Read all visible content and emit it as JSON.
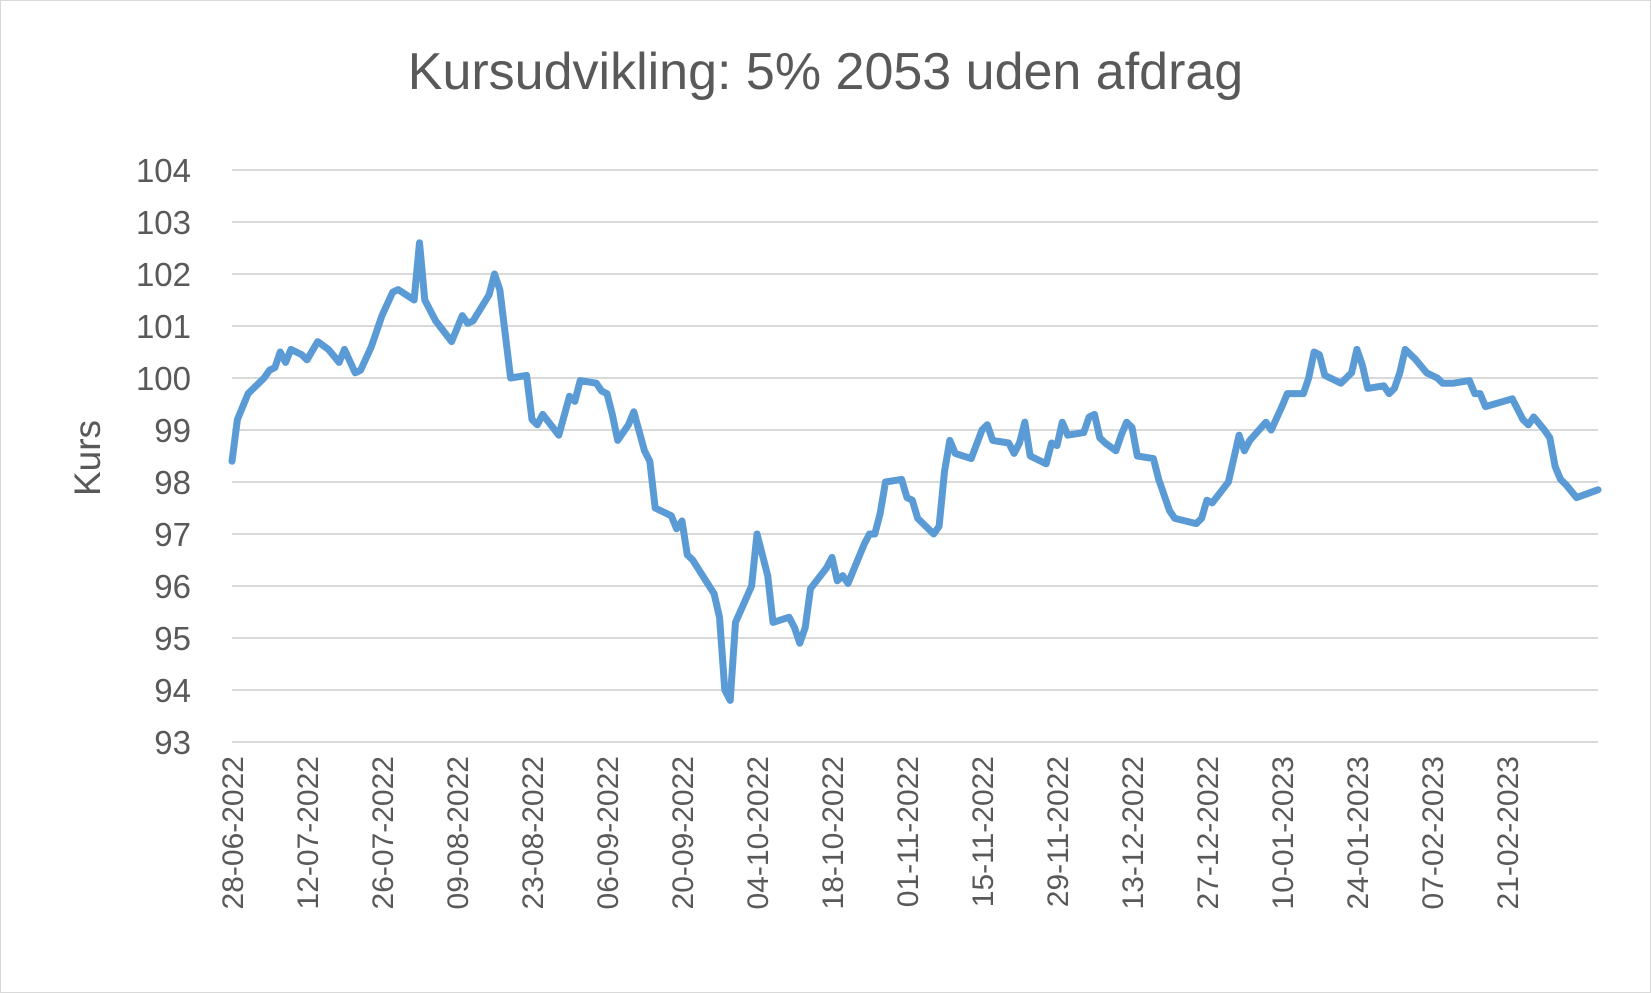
{
  "chart_data": {
    "type": "line",
    "title": "Kursudvikling: 5% 2053 uden afdrag",
    "xlabel": "",
    "ylabel": "Kurs",
    "ylim": [
      93,
      104
    ],
    "yticks": [
      "93",
      "94",
      "95",
      "96",
      "97",
      "98",
      "99",
      "100",
      "101",
      "102",
      "103",
      "104"
    ],
    "xlim": [
      "2022-06-28",
      "2023-03-10"
    ],
    "xtick_dates": [
      "2022-06-28",
      "2022-07-12",
      "2022-07-26",
      "2022-08-09",
      "2022-08-23",
      "2022-09-06",
      "2022-09-20",
      "2022-10-04",
      "2022-10-18",
      "2022-11-01",
      "2022-11-15",
      "2022-11-29",
      "2022-12-13",
      "2022-12-27",
      "2023-01-10",
      "2023-01-24",
      "2023-02-07",
      "2023-02-21"
    ],
    "xtick_labels": [
      "28-06-2022",
      "12-07-2022",
      "26-07-2022",
      "09-08-2022",
      "23-08-2022",
      "06-09-2022",
      "20-09-2022",
      "04-10-2022",
      "18-10-2022",
      "01-11-2022",
      "15-11-2022",
      "29-11-2022",
      "13-12-2022",
      "27-12-2022",
      "10-01-2023",
      "24-01-2023",
      "07-02-2023",
      "21-02-2023"
    ],
    "grid": true,
    "legend": "none",
    "series": [
      {
        "color": "#5b9bd5",
        "points": [
          [
            "2022-06-28",
            98.4
          ],
          [
            "2022-06-29",
            99.2
          ],
          [
            "2022-07-01",
            99.7
          ],
          [
            "2022-07-04",
            100.0
          ],
          [
            "2022-07-05",
            100.15
          ],
          [
            "2022-07-06",
            100.2
          ],
          [
            "2022-07-07",
            100.5
          ],
          [
            "2022-07-08",
            100.3
          ],
          [
            "2022-07-09",
            100.55
          ],
          [
            "2022-07-11",
            100.45
          ],
          [
            "2022-07-12",
            100.35
          ],
          [
            "2022-07-14",
            100.7
          ],
          [
            "2022-07-16",
            100.55
          ],
          [
            "2022-07-18",
            100.3
          ],
          [
            "2022-07-19",
            100.55
          ],
          [
            "2022-07-21",
            100.1
          ],
          [
            "2022-07-22",
            100.15
          ],
          [
            "2022-07-24",
            100.6
          ],
          [
            "2022-07-26",
            101.2
          ],
          [
            "2022-07-28",
            101.65
          ],
          [
            "2022-07-29",
            101.7
          ],
          [
            "2022-08-01",
            101.5
          ],
          [
            "2022-08-02",
            102.6
          ],
          [
            "2022-08-03",
            101.5
          ],
          [
            "2022-08-05",
            101.1
          ],
          [
            "2022-08-08",
            100.7
          ],
          [
            "2022-08-10",
            101.2
          ],
          [
            "2022-08-11",
            101.05
          ],
          [
            "2022-08-12",
            101.1
          ],
          [
            "2022-08-15",
            101.6
          ],
          [
            "2022-08-16",
            102.0
          ],
          [
            "2022-08-17",
            101.7
          ],
          [
            "2022-08-19",
            100.0
          ],
          [
            "2022-08-22",
            100.05
          ],
          [
            "2022-08-23",
            99.2
          ],
          [
            "2022-08-24",
            99.1
          ],
          [
            "2022-08-25",
            99.3
          ],
          [
            "2022-08-28",
            98.9
          ],
          [
            "2022-08-30",
            99.65
          ],
          [
            "2022-08-31",
            99.55
          ],
          [
            "2022-09-01",
            99.95
          ],
          [
            "2022-09-04",
            99.9
          ],
          [
            "2022-09-05",
            99.75
          ],
          [
            "2022-09-06",
            99.7
          ],
          [
            "2022-09-07",
            99.3
          ],
          [
            "2022-09-08",
            98.8
          ],
          [
            "2022-09-10",
            99.1
          ],
          [
            "2022-09-11",
            99.35
          ],
          [
            "2022-09-13",
            98.6
          ],
          [
            "2022-09-14",
            98.4
          ],
          [
            "2022-09-15",
            97.5
          ],
          [
            "2022-09-18",
            97.35
          ],
          [
            "2022-09-19",
            97.1
          ],
          [
            "2022-09-20",
            97.25
          ],
          [
            "2022-09-21",
            96.6
          ],
          [
            "2022-09-22",
            96.5
          ],
          [
            "2022-09-26",
            95.85
          ],
          [
            "2022-09-27",
            95.4
          ],
          [
            "2022-09-28",
            94.0
          ],
          [
            "2022-09-29",
            93.8
          ],
          [
            "2022-09-30",
            95.3
          ],
          [
            "2022-10-03",
            96.0
          ],
          [
            "2022-10-04",
            97.0
          ],
          [
            "2022-10-06",
            96.2
          ],
          [
            "2022-10-07",
            95.3
          ],
          [
            "2022-10-10",
            95.4
          ],
          [
            "2022-10-11",
            95.2
          ],
          [
            "2022-10-12",
            94.9
          ],
          [
            "2022-10-13",
            95.2
          ],
          [
            "2022-10-14",
            95.95
          ],
          [
            "2022-10-17",
            96.35
          ],
          [
            "2022-10-18",
            96.55
          ],
          [
            "2022-10-19",
            96.1
          ],
          [
            "2022-10-20",
            96.2
          ],
          [
            "2022-10-21",
            96.05
          ],
          [
            "2022-10-24",
            96.8
          ],
          [
            "2022-10-25",
            97.0
          ],
          [
            "2022-10-26",
            97.0
          ],
          [
            "2022-10-27",
            97.4
          ],
          [
            "2022-10-28",
            98.0
          ],
          [
            "2022-10-31",
            98.05
          ],
          [
            "2022-11-01",
            97.7
          ],
          [
            "2022-11-02",
            97.65
          ],
          [
            "2022-11-03",
            97.3
          ],
          [
            "2022-11-06",
            97.0
          ],
          [
            "2022-11-07",
            97.15
          ],
          [
            "2022-11-08",
            98.2
          ],
          [
            "2022-11-09",
            98.8
          ],
          [
            "2022-11-10",
            98.55
          ],
          [
            "2022-11-13",
            98.45
          ],
          [
            "2022-11-15",
            99.0
          ],
          [
            "2022-11-16",
            99.1
          ],
          [
            "2022-11-17",
            98.8
          ],
          [
            "2022-11-20",
            98.75
          ],
          [
            "2022-11-21",
            98.55
          ],
          [
            "2022-11-22",
            98.75
          ],
          [
            "2022-11-23",
            99.15
          ],
          [
            "2022-11-24",
            98.5
          ],
          [
            "2022-11-27",
            98.35
          ],
          [
            "2022-11-28",
            98.75
          ],
          [
            "2022-11-29",
            98.7
          ],
          [
            "2022-11-30",
            99.15
          ],
          [
            "2022-12-01",
            98.9
          ],
          [
            "2022-12-04",
            98.95
          ],
          [
            "2022-12-05",
            99.25
          ],
          [
            "2022-12-06",
            99.3
          ],
          [
            "2022-12-07",
            98.85
          ],
          [
            "2022-12-08",
            98.75
          ],
          [
            "2022-12-10",
            98.6
          ],
          [
            "2022-12-11",
            98.9
          ],
          [
            "2022-12-12",
            99.15
          ],
          [
            "2022-12-13",
            99.05
          ],
          [
            "2022-12-14",
            98.5
          ],
          [
            "2022-12-17",
            98.45
          ],
          [
            "2022-12-18",
            98.05
          ],
          [
            "2022-12-20",
            97.45
          ],
          [
            "2022-12-21",
            97.3
          ],
          [
            "2022-12-25",
            97.2
          ],
          [
            "2022-12-26",
            97.3
          ],
          [
            "2022-12-27",
            97.65
          ],
          [
            "2022-12-28",
            97.6
          ],
          [
            "2022-12-31",
            98.0
          ],
          [
            "2023-01-02",
            98.9
          ],
          [
            "2023-01-03",
            98.6
          ],
          [
            "2023-01-04",
            98.8
          ],
          [
            "2023-01-07",
            99.15
          ],
          [
            "2023-01-08",
            99.0
          ],
          [
            "2023-01-10",
            99.45
          ],
          [
            "2023-01-11",
            99.7
          ],
          [
            "2023-01-14",
            99.7
          ],
          [
            "2023-01-15",
            100.0
          ],
          [
            "2023-01-16",
            100.5
          ],
          [
            "2023-01-17",
            100.45
          ],
          [
            "2023-01-18",
            100.05
          ],
          [
            "2023-01-21",
            99.9
          ],
          [
            "2023-01-23",
            100.1
          ],
          [
            "2023-01-24",
            100.55
          ],
          [
            "2023-01-25",
            100.25
          ],
          [
            "2023-01-26",
            99.8
          ],
          [
            "2023-01-29",
            99.85
          ],
          [
            "2023-01-30",
            99.7
          ],
          [
            "2023-01-31",
            99.8
          ],
          [
            "2023-02-01",
            100.1
          ],
          [
            "2023-02-02",
            100.55
          ],
          [
            "2023-02-04",
            100.35
          ],
          [
            "2023-02-06",
            100.1
          ],
          [
            "2023-02-07",
            100.05
          ],
          [
            "2023-02-08",
            100.0
          ],
          [
            "2023-02-09",
            99.9
          ],
          [
            "2023-02-11",
            99.9
          ],
          [
            "2023-02-14",
            99.95
          ],
          [
            "2023-02-15",
            99.7
          ],
          [
            "2023-02-16",
            99.7
          ],
          [
            "2023-02-17",
            99.45
          ],
          [
            "2023-02-22",
            99.6
          ],
          [
            "2023-02-24",
            99.2
          ],
          [
            "2023-02-25",
            99.1
          ],
          [
            "2023-02-26",
            99.25
          ],
          [
            "2023-02-28",
            99.0
          ],
          [
            "2023-03-01",
            98.85
          ],
          [
            "2023-03-02",
            98.3
          ],
          [
            "2023-03-03",
            98.05
          ],
          [
            "2023-03-04",
            97.95
          ],
          [
            "2023-03-06",
            97.7
          ],
          [
            "2023-03-10",
            97.85
          ]
        ]
      }
    ]
  }
}
